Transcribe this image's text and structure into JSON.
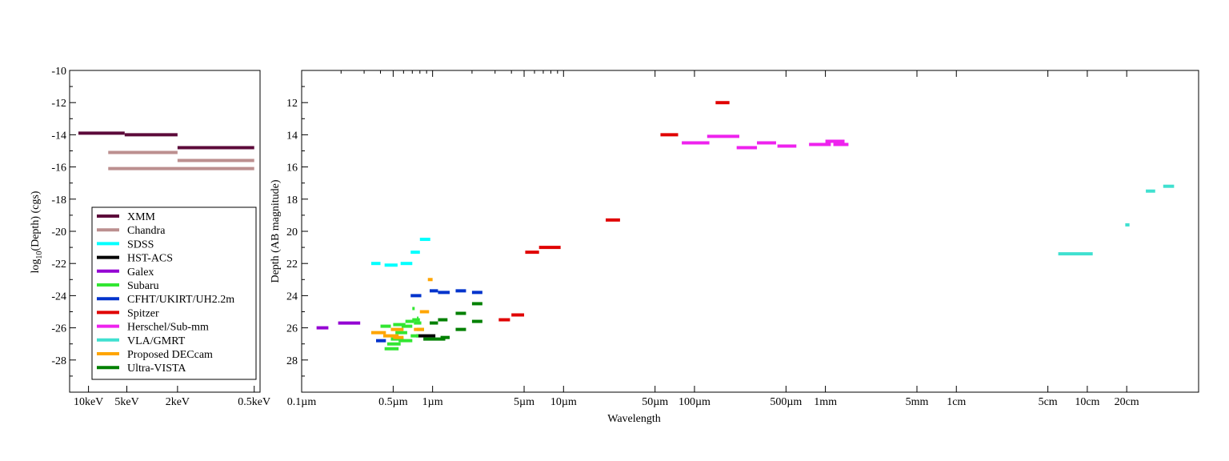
{
  "chart_data": [
    {
      "type": "scatter",
      "title": "",
      "ylabel_main": "log",
      "ylabel_sub": "10",
      "ylabel_rest": "(Depth) (cgs)",
      "xticks": [
        "10keV",
        "5keV",
        "2keV",
        "0.5keV"
      ],
      "yticks": [
        "-10",
        "-12",
        "-14",
        "-16",
        "-18",
        "-20",
        "-22",
        "-24",
        "-26",
        "-28"
      ],
      "ylim": [
        -30,
        -10
      ],
      "x_unit": "keV",
      "log_x": true,
      "series": [
        {
          "name": "XMM",
          "color": "#5c0a3a",
          "segments": [
            [
              12,
              5.2,
              -13.9
            ],
            [
              5.2,
              2,
              -14.0
            ],
            [
              2,
              0.5,
              -14.8
            ]
          ]
        },
        {
          "name": "Chandra",
          "color": "#bc8f8f",
          "segments": [
            [
              7,
              2,
              -15.1
            ],
            [
              2,
              0.5,
              -15.6
            ],
            [
              7,
              0.5,
              -16.1
            ]
          ]
        }
      ]
    },
    {
      "type": "scatter",
      "title": "",
      "xlabel": "Wavelength",
      "ylabel": "Depth (AB magnitude)",
      "xticks": [
        "0.1µm",
        "0.5µm",
        "1µm",
        "5µm",
        "10µm",
        "50µm",
        "100µm",
        "500µm",
        "1mm",
        "5mm",
        "1cm",
        "5cm",
        "10cm",
        "20cm"
      ],
      "yticks": [
        "12",
        "14",
        "16",
        "18",
        "20",
        "22",
        "24",
        "26",
        "28"
      ],
      "ylim": [
        10,
        30
      ],
      "y_inverted": true,
      "x_unit": "µm",
      "log_x": true,
      "series": [
        {
          "name": "SDSS",
          "color": "#00ffff",
          "segments": [
            [
              0.34,
              0.4,
              22.0
            ],
            [
              0.43,
              0.54,
              22.1
            ],
            [
              0.57,
              0.7,
              22.0
            ],
            [
              0.68,
              0.8,
              21.3
            ],
            [
              0.8,
              0.96,
              20.5
            ]
          ]
        },
        {
          "name": "HST-ACS",
          "color": "#000000",
          "segments": [
            [
              0.75,
              1.05,
              26.5
            ]
          ]
        },
        {
          "name": "Galex",
          "color": "#9400d3",
          "segments": [
            [
              0.13,
              0.16,
              26.0
            ],
            [
              0.19,
              0.28,
              25.7
            ]
          ]
        },
        {
          "name": "Subaru",
          "color": "#32e632",
          "segments": [
            [
              0.4,
              0.48,
              25.9
            ],
            [
              0.43,
              0.55,
              27.3
            ],
            [
              0.45,
              0.57,
              27.0
            ],
            [
              0.48,
              0.6,
              26.7
            ],
            [
              0.5,
              0.62,
              25.8
            ],
            [
              0.52,
              0.64,
              26.3
            ],
            [
              0.55,
              0.7,
              26.8
            ],
            [
              0.58,
              0.7,
              25.9
            ],
            [
              0.62,
              0.72,
              25.6
            ],
            [
              0.68,
              0.78,
              26.5
            ],
            [
              0.7,
              0.8,
              25.5
            ],
            [
              0.72,
              0.82,
              25.7
            ],
            [
              0.76,
              0.86,
              26.1
            ],
            [
              0.7,
              0.73,
              24.8
            ],
            [
              0.76,
              0.78,
              25.4
            ]
          ]
        },
        {
          "name": "CFHT/UKIRT/UH2.2m",
          "color": "#0033cc",
          "segments": [
            [
              0.37,
              0.44,
              26.8
            ],
            [
              0.68,
              0.82,
              24.0
            ],
            [
              0.95,
              1.1,
              23.7
            ],
            [
              1.1,
              1.35,
              23.8
            ],
            [
              1.5,
              1.8,
              23.7
            ],
            [
              2.0,
              2.4,
              23.8
            ]
          ]
        },
        {
          "name": "Spitzer",
          "color": "#e00000",
          "segments": [
            [
              3.2,
              3.9,
              25.5
            ],
            [
              4.0,
              5.0,
              25.2
            ],
            [
              5.1,
              6.5,
              21.3
            ],
            [
              6.5,
              9.5,
              21.0
            ],
            [
              21,
              27,
              19.3
            ],
            [
              55,
              75,
              14.0
            ],
            [
              145,
              185,
              12.0
            ]
          ]
        },
        {
          "name": "Herschel/Sub-mm",
          "color": "#ee22ee",
          "segments": [
            [
              80,
              130,
              14.5
            ],
            [
              125,
              220,
              14.1
            ],
            [
              210,
              300,
              14.8
            ],
            [
              300,
              420,
              14.5
            ],
            [
              430,
              600,
              14.7
            ],
            [
              750,
              1100,
              14.6
            ],
            [
              1000,
              1400,
              14.4
            ],
            [
              1150,
              1500,
              14.6
            ]
          ]
        },
        {
          "name": "VLA/GMRT",
          "color": "#40e0d0",
          "segments": [
            [
              60000,
              110000,
              21.4
            ],
            [
              195000,
              210000,
              19.6
            ],
            [
              280000,
              330000,
              17.5
            ],
            [
              380000,
              460000,
              17.2
            ]
          ]
        },
        {
          "name": "Proposed DECcam",
          "color": "#ffa500",
          "segments": [
            [
              0.34,
              0.44,
              26.3
            ],
            [
              0.42,
              0.55,
              26.5
            ],
            [
              0.48,
              0.6,
              26.1
            ],
            [
              0.72,
              0.86,
              26.1
            ],
            [
              0.8,
              0.94,
              25.0
            ],
            [
              0.92,
              1.0,
              23.0
            ],
            [
              0.5,
              0.6,
              26.6
            ]
          ]
        },
        {
          "name": "Ultra-VISTA",
          "color": "#008000",
          "segments": [
            [
              0.85,
              1.25,
              26.7
            ],
            [
              0.95,
              1.1,
              25.7
            ],
            [
              1.1,
              1.3,
              25.5
            ],
            [
              1.15,
              1.35,
              26.6
            ],
            [
              1.5,
              1.8,
              25.1
            ],
            [
              1.5,
              1.8,
              26.1
            ],
            [
              2.0,
              2.4,
              24.5
            ],
            [
              2.0,
              2.4,
              25.6
            ]
          ]
        }
      ]
    }
  ],
  "legend": {
    "entries": [
      {
        "label": "XMM",
        "color": "#5c0a3a"
      },
      {
        "label": "Chandra",
        "color": "#bc8f8f"
      },
      {
        "label": "SDSS",
        "color": "#00ffff"
      },
      {
        "label": "HST-ACS",
        "color": "#000000"
      },
      {
        "label": "Galex",
        "color": "#9400d3"
      },
      {
        "label": "Subaru",
        "color": "#32e632"
      },
      {
        "label": "CFHT/UKIRT/UH2.2m",
        "color": "#0033cc"
      },
      {
        "label": "Spitzer",
        "color": "#e00000"
      },
      {
        "label": "Herschel/Sub-mm",
        "color": "#ee22ee"
      },
      {
        "label": "VLA/GMRT",
        "color": "#40e0d0"
      },
      {
        "label": "Proposed DECcam",
        "color": "#ffa500"
      },
      {
        "label": "Ultra-VISTA",
        "color": "#008000"
      }
    ]
  }
}
